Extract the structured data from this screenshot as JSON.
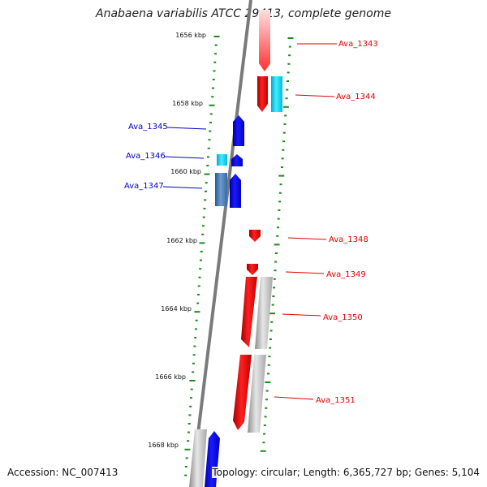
{
  "title": "Anabaena variabilis ATCC 29413, complete genome",
  "accession_text": "Accession: NC_007413",
  "stats_text": "Topology: circular; Length: 6,365,727 bp; Genes: 5,104",
  "colors": {
    "forward_red": "#ff0000",
    "reverse_blue": "#0000ee",
    "cyan": "#00d8ff",
    "steelblue": "#3f7fbf",
    "gray": "#c0c0c0",
    "tick_green": "#1a8a1a",
    "backbone": "#7a7a7a"
  },
  "position_labels": [
    "1656 kbp",
    "1658 kbp",
    "1660 kbp",
    "1662 kbp",
    "1664 kbp",
    "1666 kbp",
    "1668 kbp"
  ],
  "genes": [
    {
      "label": "Ava_1343",
      "color": "red",
      "side": "right"
    },
    {
      "label": "Ava_1344",
      "color": "red",
      "side": "right"
    },
    {
      "label": "Ava_1345",
      "color": "blue",
      "side": "left"
    },
    {
      "label": "Ava_1346",
      "color": "blue",
      "side": "left"
    },
    {
      "label": "Ava_1347",
      "color": "blue",
      "side": "left"
    },
    {
      "label": "Ava_1348",
      "color": "red",
      "side": "right"
    },
    {
      "label": "Ava_1349",
      "color": "red",
      "side": "right"
    },
    {
      "label": "Ava_1350",
      "color": "red",
      "side": "right"
    },
    {
      "label": "Ava_1351",
      "color": "red",
      "side": "right"
    }
  ]
}
